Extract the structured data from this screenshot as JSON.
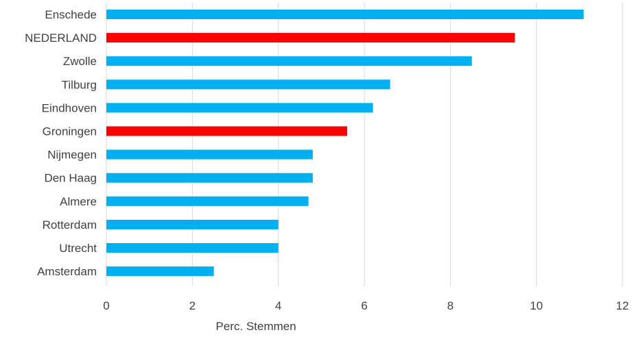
{
  "chart_data": {
    "type": "bar",
    "orientation": "horizontal",
    "categories": [
      "Enschede",
      "NEDERLAND",
      "Zwolle",
      "Tilburg",
      "Eindhoven",
      "Groningen",
      "Nijmegen",
      "Den Haag",
      "Almere",
      "Rotterdam",
      "Utrecht",
      "Amsterdam"
    ],
    "values": [
      11.1,
      9.5,
      8.5,
      6.6,
      6.2,
      5.6,
      4.8,
      4.8,
      4.7,
      4.0,
      4.0,
      2.5
    ],
    "bar_colors": [
      "#00b0f0",
      "#ff0000",
      "#00b0f0",
      "#00b0f0",
      "#00b0f0",
      "#ff0000",
      "#00b0f0",
      "#00b0f0",
      "#00b0f0",
      "#00b0f0",
      "#00b0f0",
      "#00b0f0"
    ],
    "xticks": [
      "0",
      "2",
      "4",
      "6",
      "8",
      "10",
      "12"
    ],
    "xlim": [
      0,
      12
    ],
    "xlabel": "Perc. Stemmen",
    "grid": "vertical",
    "legend": "none"
  },
  "colors": {
    "highlight": "#ff0000",
    "default": "#00b0f0",
    "grid": "#d9d9d9",
    "text": "#404040"
  }
}
